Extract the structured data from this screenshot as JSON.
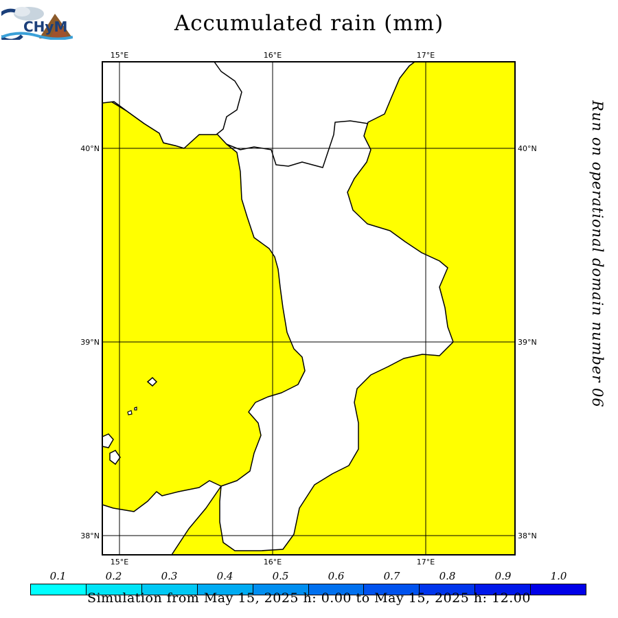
{
  "title": "Accumulated rain (mm)",
  "side_note": "Run on operational domain number 06",
  "footer": "Simulation from May 15, 2025 h: 0.00 to May 15, 2025 h: 12.00",
  "logo_text": "CHyM",
  "lon_ticks": [
    "15°E",
    "16°E",
    "17°E"
  ],
  "lat_ticks": [
    "40°N",
    "39°N",
    "38°N"
  ],
  "legend": {
    "labels": [
      "0.1",
      "0.2",
      "0.3",
      "0.4",
      "0.5",
      "0.6",
      "0.7",
      "0.8",
      "0.9",
      "1.0"
    ],
    "colors": [
      "#00ffff",
      "#00e4f7",
      "#00c8f4",
      "#00abf2",
      "#008ef0",
      "#0070ef",
      "#0052ee",
      "#0035ec",
      "#0018ea",
      "#0000e8"
    ]
  },
  "colors": {
    "land": "#ffffff",
    "rain_area": "#ffff00",
    "coast": "#000000"
  }
}
